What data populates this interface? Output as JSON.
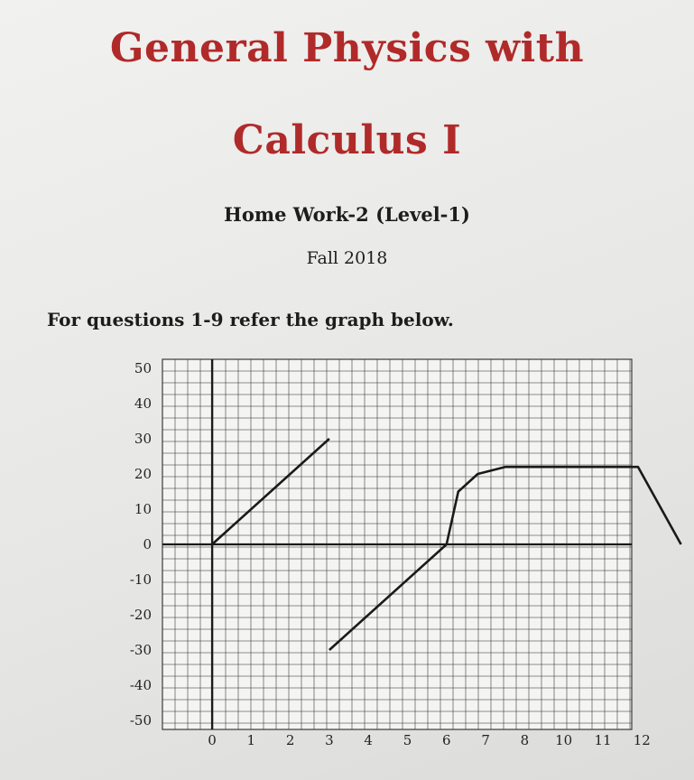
{
  "document": {
    "title_line1": "General Physics with",
    "title_line2": "Calculus I",
    "assignment": "Home Work-2 (Level-1)",
    "term": "Fall 2018",
    "instruction": "For questions 1-9 refer the graph below."
  },
  "chart_data": {
    "type": "line",
    "x_tick_labels": [
      "0",
      "1",
      "2",
      "3",
      "4",
      "5",
      "6",
      "7",
      "8",
      "10",
      "11",
      "12"
    ],
    "y_tick_labels": [
      "50",
      "40",
      "30",
      "20",
      "10",
      "0",
      "-10",
      "-20",
      "-30",
      "-40",
      "-50"
    ],
    "xlim": [
      -1,
      12
    ],
    "ylim": [
      -50,
      50
    ],
    "grid": true,
    "series": [
      {
        "segment": "a",
        "points": [
          [
            0,
            0
          ],
          [
            3,
            30
          ]
        ]
      },
      {
        "segment": "b",
        "points": [
          [
            3,
            -30
          ],
          [
            6,
            0
          ],
          [
            6.3,
            15
          ],
          [
            6.8,
            20
          ],
          [
            7.5,
            22
          ],
          [
            10.9,
            22
          ],
          [
            12,
            0
          ]
        ]
      }
    ],
    "colors": {
      "line": "#1a1a1a",
      "grid": "#3a3a3a",
      "title": "#b02a2a"
    }
  }
}
